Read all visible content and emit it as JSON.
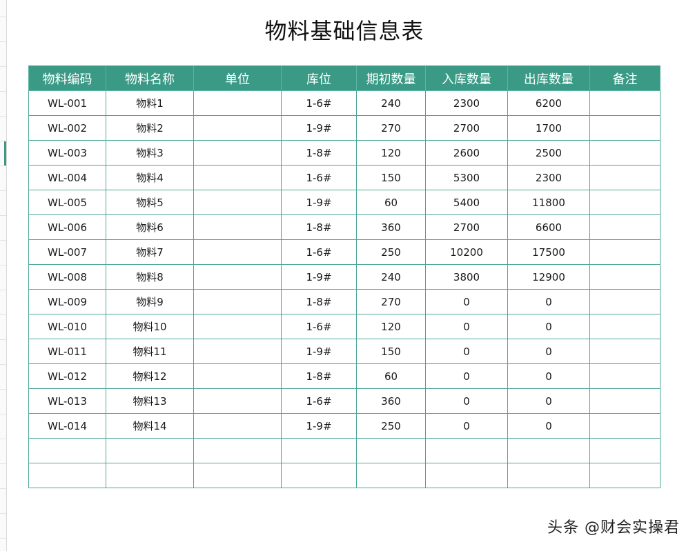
{
  "title": "物料基础信息表",
  "columns": [
    "物料编码",
    "物料名称",
    "单位",
    "库位",
    "期初数量",
    "入库数量",
    "出库数量",
    "备注"
  ],
  "rows": [
    [
      "WL-001",
      "物料1",
      "",
      "1-6#",
      "240",
      "2300",
      "6200",
      ""
    ],
    [
      "WL-002",
      "物料2",
      "",
      "1-9#",
      "270",
      "2700",
      "1700",
      ""
    ],
    [
      "WL-003",
      "物料3",
      "",
      "1-8#",
      "120",
      "2600",
      "2500",
      ""
    ],
    [
      "WL-004",
      "物料4",
      "",
      "1-6#",
      "150",
      "5300",
      "2300",
      ""
    ],
    [
      "WL-005",
      "物料5",
      "",
      "1-9#",
      "60",
      "5400",
      "11800",
      ""
    ],
    [
      "WL-006",
      "物料6",
      "",
      "1-8#",
      "360",
      "2700",
      "6600",
      ""
    ],
    [
      "WL-007",
      "物料7",
      "",
      "1-6#",
      "250",
      "10200",
      "17500",
      ""
    ],
    [
      "WL-008",
      "物料8",
      "",
      "1-9#",
      "240",
      "3800",
      "12900",
      ""
    ],
    [
      "WL-009",
      "物料9",
      "",
      "1-8#",
      "270",
      "0",
      "0",
      ""
    ],
    [
      "WL-010",
      "物料10",
      "",
      "1-6#",
      "120",
      "0",
      "0",
      ""
    ],
    [
      "WL-011",
      "物料11",
      "",
      "1-9#",
      "150",
      "0",
      "0",
      ""
    ],
    [
      "WL-012",
      "物料12",
      "",
      "1-8#",
      "60",
      "0",
      "0",
      ""
    ],
    [
      "WL-013",
      "物料13",
      "",
      "1-6#",
      "360",
      "0",
      "0",
      ""
    ],
    [
      "WL-014",
      "物料14",
      "",
      "1-9#",
      "250",
      "0",
      "0",
      ""
    ],
    [
      "",
      "",
      "",
      "",
      "",
      "",
      "",
      ""
    ],
    [
      "",
      "",
      "",
      "",
      "",
      "",
      "",
      ""
    ]
  ],
  "watermark": "头条 @财会实操君",
  "colors": {
    "header_bg": "#3a9a86",
    "header_text": "#ffffff",
    "grid": "#4aa596"
  }
}
